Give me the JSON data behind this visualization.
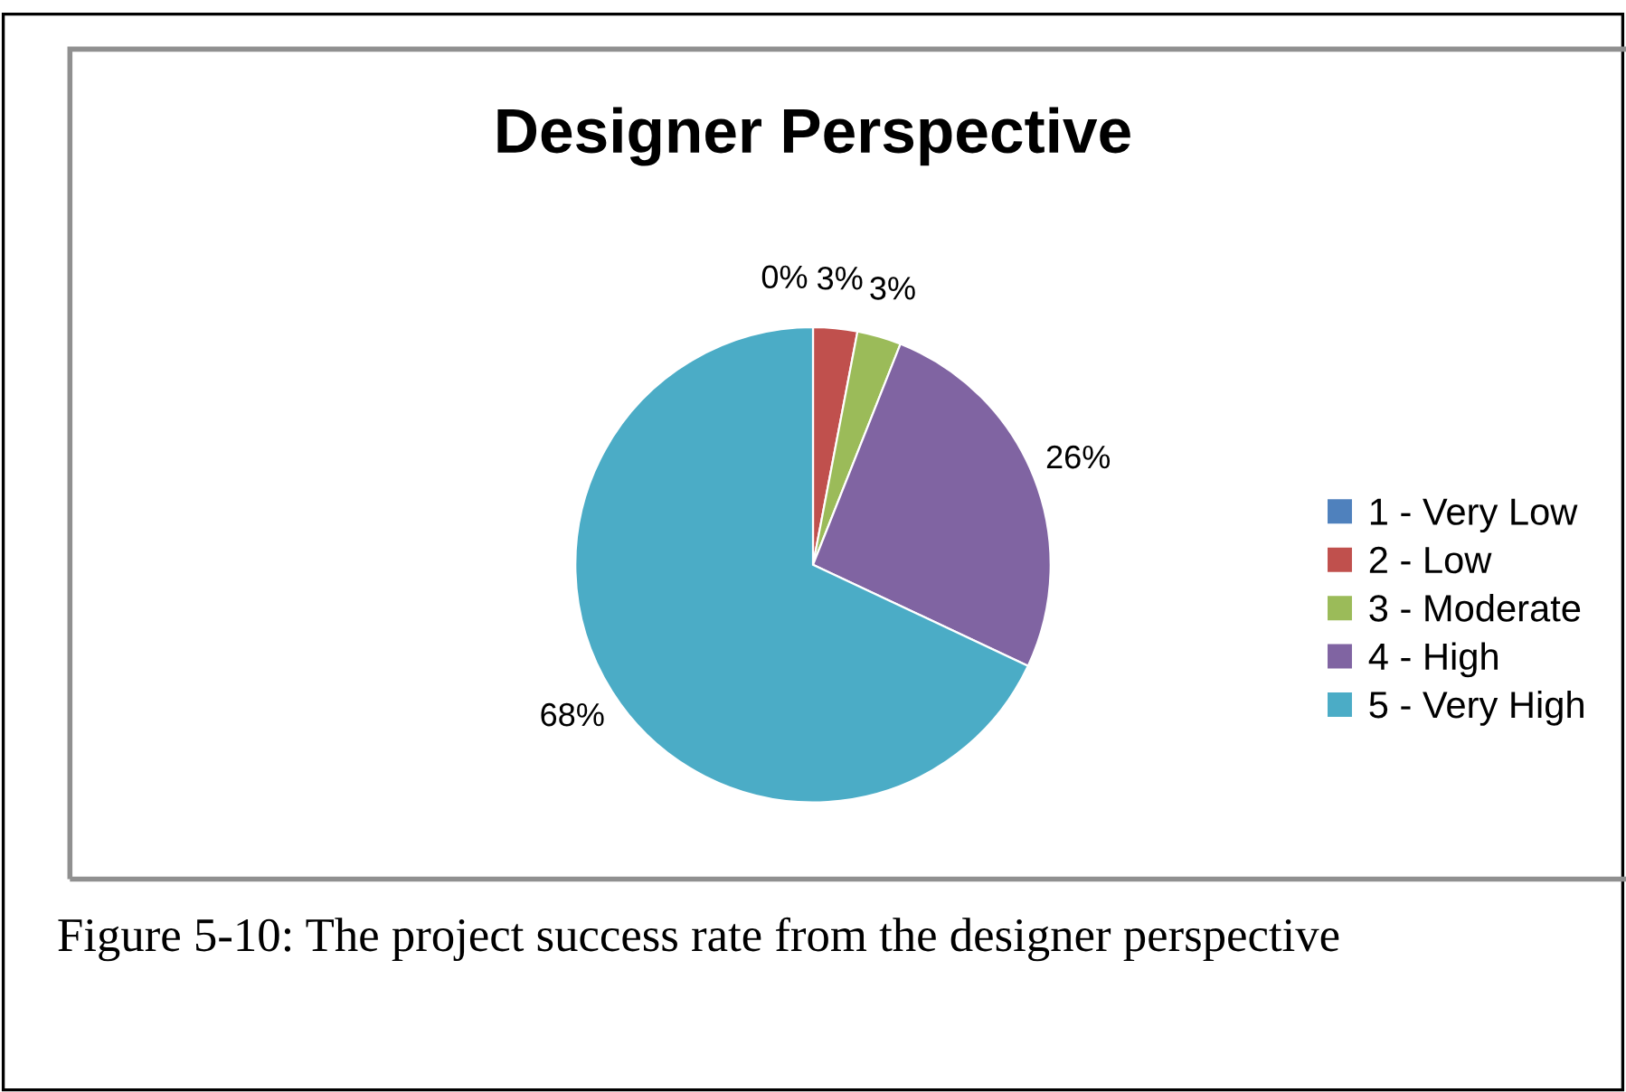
{
  "chart_data": {
    "type": "pie",
    "title": "Designer Perspective",
    "categories": [
      "1 - Very Low",
      "2 - Low",
      "3 - Moderate",
      "4 - High",
      "5 - Very High"
    ],
    "values": [
      0,
      3,
      3,
      26,
      68
    ],
    "colors": [
      "#4f81bd",
      "#c0504d",
      "#9bbb59",
      "#8064a2",
      "#4bacc6"
    ],
    "value_labels": [
      "0%",
      "3%",
      "3%",
      "26%",
      "68%"
    ],
    "legend": "right",
    "annotations": [
      "Figure 5-10: The project success rate from the designer perspective"
    ]
  }
}
